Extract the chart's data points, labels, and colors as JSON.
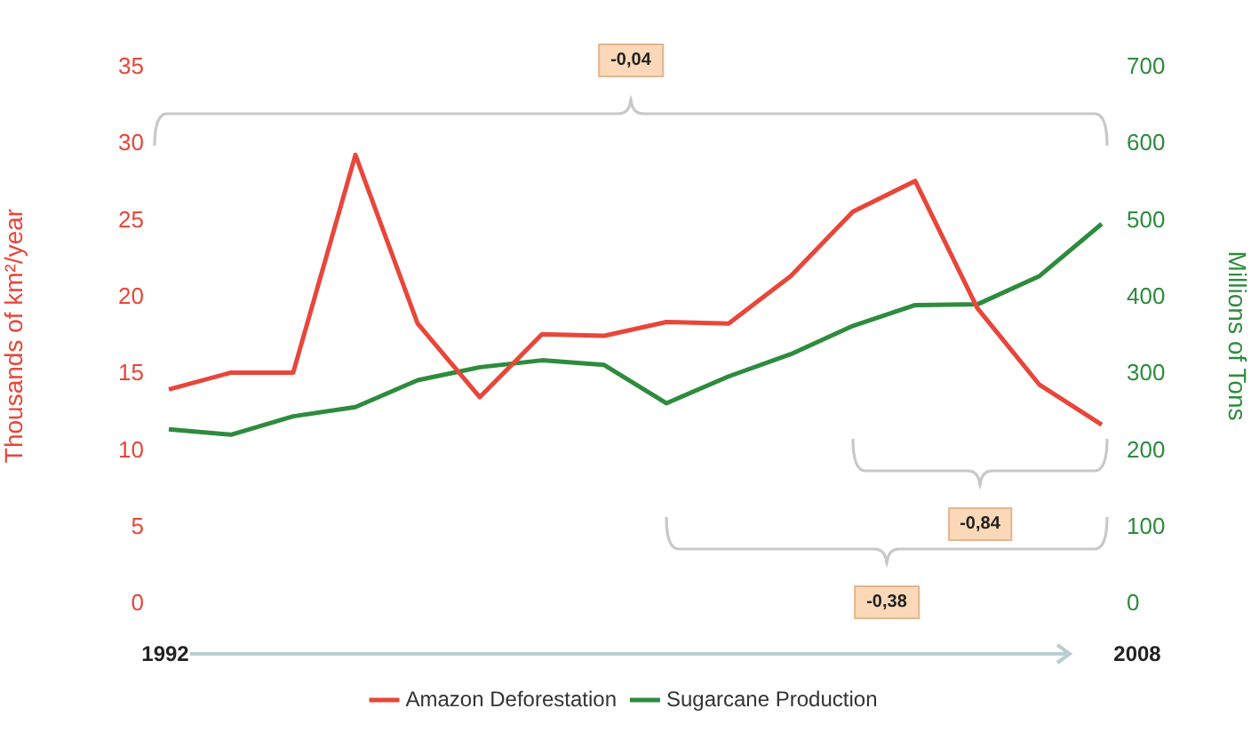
{
  "chart_data": {
    "type": "line",
    "categories": [
      null,
      null,
      null,
      null,
      null,
      null,
      null,
      null,
      null,
      null,
      null,
      null,
      null,
      null,
      null,
      null
    ],
    "ylabel": "Thousands of km²/year",
    "y2label": "Millions of Tons",
    "series": [
      {
        "name": "Amazon Deforestation",
        "color": "#e8463a",
        "values": [
          14.0,
          15.1,
          15.1,
          29.3,
          18.3,
          13.5,
          17.6,
          17.5,
          18.4,
          18.3,
          21.4,
          25.6,
          27.6,
          19.3,
          14.3,
          11.7
        ]
      },
      {
        "name": "Sugarcane Production",
        "color": "#2e8b3e",
        "axis": "y2",
        "values": [
          228,
          221,
          245,
          257,
          292,
          309,
          318,
          312,
          262,
          297,
          326,
          363,
          390,
          391,
          428,
          496
        ]
      }
    ],
    "ylim": [
      0,
      35
    ],
    "yticks": [
      0,
      5,
      10,
      15,
      20,
      25,
      30,
      35
    ],
    "y2lim": [
      0,
      700
    ],
    "y2ticks": [
      0,
      100,
      200,
      300,
      400,
      500,
      600,
      700
    ],
    "grid": false,
    "legend": "bottom",
    "marker": "none",
    "line_style": "solid",
    "annotations": [
      "-0,04",
      "-0,84",
      "-0,38",
      "1992",
      "2008"
    ]
  }
}
